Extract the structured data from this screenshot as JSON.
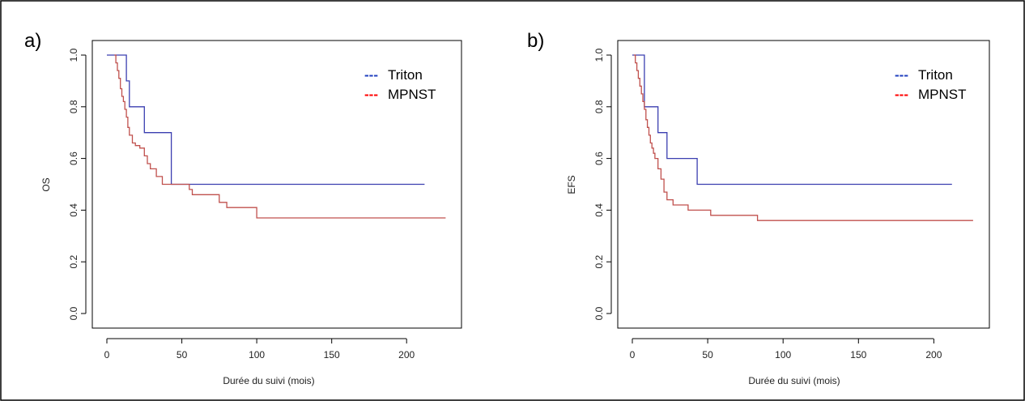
{
  "chart_data": [
    {
      "type": "line",
      "panel_label": "a)",
      "xlabel": "Durée du suivi (mois)",
      "ylabel": "OS",
      "xlim": [
        0,
        225
      ],
      "ylim": [
        0,
        1
      ],
      "x_ticks": [
        "0",
        "50",
        "100",
        "150",
        "200"
      ],
      "y_ticks": [
        "0.0",
        "0.2",
        "0.4",
        "0.6",
        "0.8",
        "1.0"
      ],
      "grid": false,
      "legend_position": "top-right",
      "step": true,
      "series": [
        {
          "name": "Triton",
          "color": "#3b3fb0",
          "x": [
            0,
            13,
            13,
            15,
            15,
            25,
            25,
            43,
            43,
            212
          ],
          "y": [
            1.0,
            1.0,
            0.9,
            0.9,
            0.8,
            0.8,
            0.7,
            0.7,
            0.5,
            0.5
          ]
        },
        {
          "name": "MPNST",
          "color": "#c0504d",
          "x": [
            5,
            6,
            7,
            8,
            9,
            10,
            11,
            12,
            13,
            14,
            15,
            17,
            19,
            22,
            25,
            27,
            29,
            33,
            37,
            55,
            57,
            75,
            80,
            100,
            226
          ],
          "y": [
            1.0,
            0.97,
            0.94,
            0.91,
            0.87,
            0.84,
            0.82,
            0.79,
            0.76,
            0.72,
            0.69,
            0.66,
            0.65,
            0.64,
            0.61,
            0.58,
            0.56,
            0.53,
            0.5,
            0.48,
            0.46,
            0.43,
            0.41,
            0.37,
            0.37
          ]
        }
      ]
    },
    {
      "type": "line",
      "panel_label": "b)",
      "xlabel": "Durée du suivi (mois)",
      "ylabel": "EFS",
      "xlim": [
        0,
        225
      ],
      "ylim": [
        0,
        1
      ],
      "x_ticks": [
        "0",
        "50",
        "100",
        "150",
        "200"
      ],
      "y_ticks": [
        "0.0",
        "0.2",
        "0.4",
        "0.6",
        "0.8",
        "1.0"
      ],
      "grid": false,
      "legend_position": "top-right",
      "step": true,
      "series": [
        {
          "name": "Triton",
          "color": "#3b3fb0",
          "x": [
            0,
            8,
            8,
            17,
            17,
            23,
            23,
            43,
            43,
            212
          ],
          "y": [
            1.0,
            1.0,
            0.8,
            0.8,
            0.7,
            0.7,
            0.6,
            0.6,
            0.5,
            0.5
          ]
        },
        {
          "name": "MPNST",
          "color": "#c0504d",
          "x": [
            1,
            2,
            3,
            4,
            5,
            6,
            7,
            8,
            9,
            10,
            11,
            12,
            13,
            14,
            15,
            17,
            19,
            21,
            23,
            27,
            37,
            52,
            83,
            226
          ],
          "y": [
            1.0,
            0.97,
            0.94,
            0.91,
            0.88,
            0.85,
            0.82,
            0.79,
            0.75,
            0.72,
            0.69,
            0.66,
            0.64,
            0.62,
            0.6,
            0.56,
            0.52,
            0.47,
            0.44,
            0.42,
            0.4,
            0.38,
            0.36,
            0.36
          ]
        }
      ]
    }
  ],
  "legend_line_symbol": "---",
  "colors": {
    "triton_legend": "#1f3fbf",
    "mpnst_legend": "#ff0000",
    "frame": "#000000"
  }
}
